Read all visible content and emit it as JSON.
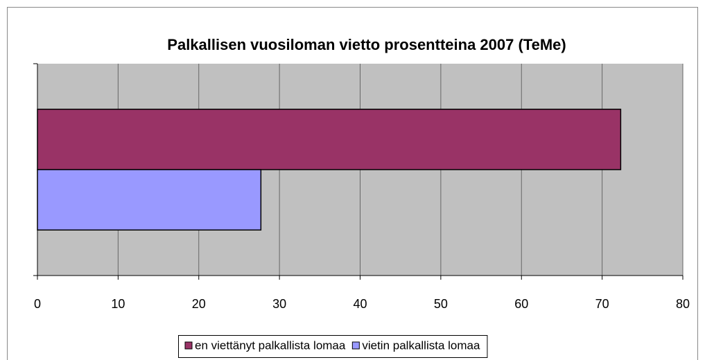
{
  "chart_data": {
    "type": "hbar",
    "title": "Palkallisen vuosiloman vietto prosentteina 2007 (TeMe)",
    "categories": [
      null
    ],
    "series": [
      {
        "name": "en viettänyt palkallista lomaa",
        "color": "#993366",
        "values": [
          72.3
        ]
      },
      {
        "name": "vietin palkallista lomaa",
        "color": "#9999ff",
        "values": [
          27.7
        ]
      }
    ],
    "xlim": [
      0,
      80
    ],
    "xticks": [
      0,
      10,
      20,
      30,
      40,
      50,
      60,
      70,
      80
    ],
    "grid": true,
    "legend": "bottom",
    "plot_background": "#c0c0c0"
  }
}
